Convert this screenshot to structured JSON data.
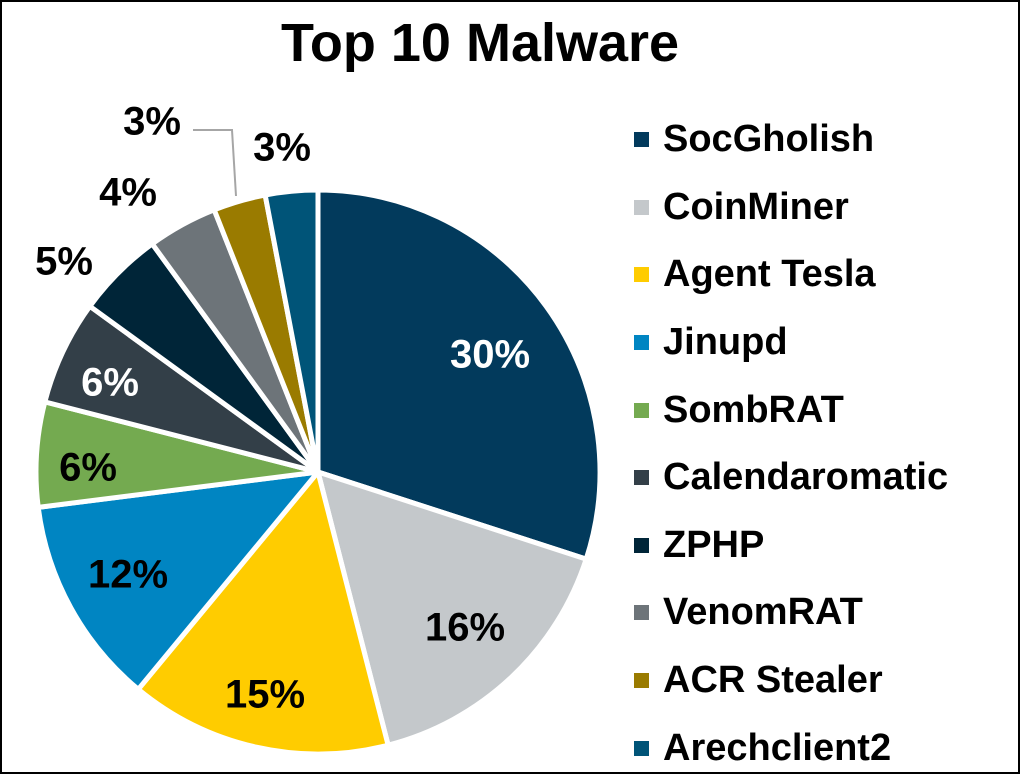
{
  "chart_data": {
    "type": "pie",
    "title": "Top 10 Malware",
    "categories": [
      "SocGholish",
      "CoinMiner",
      "Agent Tesla",
      "Jinupd",
      "SombRAT",
      "Calendaromatic",
      "ZPHP",
      "VenomRAT",
      "ACR Stealer",
      "Arechclient2"
    ],
    "values": [
      30,
      16,
      15,
      12,
      6,
      6,
      5,
      4,
      3,
      3
    ],
    "labels": [
      "30%",
      "16%",
      "15%",
      "12%",
      "6%",
      "6%",
      "5%",
      "4%",
      "3%",
      "3%"
    ],
    "colors": [
      "#023a5c",
      "#c4c8cb",
      "#ffcc00",
      "#0085c2",
      "#74aa50",
      "#333f48",
      "#002538",
      "#6d7479",
      "#9a7b00",
      "#005478"
    ],
    "legend_position": "right"
  },
  "legend": {
    "items": [
      {
        "label": "SocGholish"
      },
      {
        "label": "CoinMiner"
      },
      {
        "label": "Agent Tesla"
      },
      {
        "label": "Jinupd"
      },
      {
        "label": "SombRAT"
      },
      {
        "label": "Calendaromatic"
      },
      {
        "label": "ZPHP"
      },
      {
        "label": "VenomRAT"
      },
      {
        "label": "ACR Stealer"
      },
      {
        "label": "Arechclient2"
      }
    ]
  }
}
